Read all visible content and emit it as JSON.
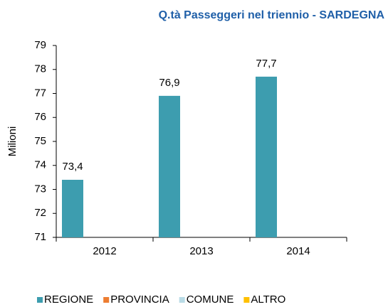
{
  "chart_data": {
    "type": "bar",
    "title": "Q.tà Passeggeri nel triennio - SARDEGNA",
    "y_label": "Milioni",
    "categories": [
      "2012",
      "2013",
      "2014"
    ],
    "series": [
      {
        "name": "REGIONE",
        "color": "#3d9daf",
        "values": [
          73.4,
          76.9,
          77.7
        ],
        "value_labels": [
          "73,4",
          "76,9",
          "77,7"
        ]
      },
      {
        "name": "PROVINCIA",
        "color": "#ed7d31",
        "values": [
          null,
          null,
          null
        ]
      },
      {
        "name": "COMUNE",
        "color": "#b9dbe6",
        "values": [
          null,
          null,
          null
        ]
      },
      {
        "name": "ALTRO",
        "color": "#ffc000",
        "values": [
          null,
          null,
          null
        ]
      }
    ],
    "ylim": [
      71,
      79
    ],
    "yticks": [
      71,
      72,
      73,
      74,
      75,
      76,
      77,
      78,
      79
    ],
    "grid": false,
    "legend": "bottom"
  }
}
